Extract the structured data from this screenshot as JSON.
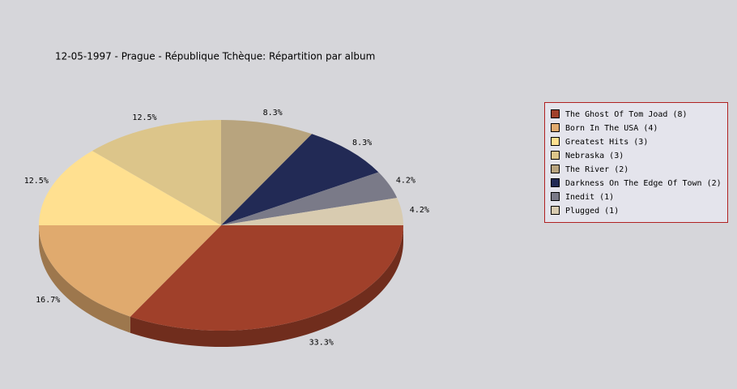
{
  "chart_data": {
    "type": "pie",
    "title": "12-05-1997 - Prague - République Tchèque:  Répartition par album",
    "categories": [
      "The Ghost Of Tom Joad (8)",
      "Born In The USA (4)",
      "Greatest Hits (3)",
      "Nebraska (3)",
      "The River (2)",
      "Darkness On The Edge Of Town (2)",
      "Inedit (1)",
      "Plugged (1)"
    ],
    "values": [
      33.3,
      16.7,
      12.5,
      12.5,
      8.3,
      8.3,
      4.2,
      4.2
    ],
    "value_labels": [
      "33.3%",
      "16.7%",
      "12.5%",
      "12.5%",
      "8.3%",
      "8.3%",
      "4.2%",
      "4.2%"
    ],
    "colors": [
      "#a0402a",
      "#e0aa6e",
      "#ffe090",
      "#dcc58a",
      "#b8a47e",
      "#222a55",
      "#7a7a88",
      "#d8cbb0"
    ],
    "legend": "right"
  }
}
